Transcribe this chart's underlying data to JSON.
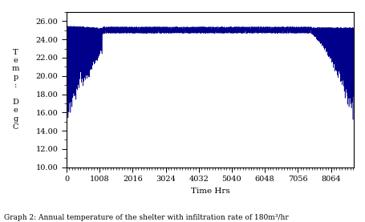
{
  "title": "Graph 2: Annual temperature of the shelter with infiltration rate of 180m³/hr",
  "ylabel": "T\ne\nm\np\n:\n\nD\ne\ng\nC",
  "xlabel": "Time Hrs",
  "xlim": [
    0,
    8760
  ],
  "ylim": [
    10,
    27
  ],
  "yticks": [
    10.0,
    12.0,
    14.0,
    16.0,
    18.0,
    20.0,
    22.0,
    24.0,
    26.0
  ],
  "xticks": [
    0,
    1008,
    2016,
    3024,
    4032,
    5040,
    6048,
    7056,
    8064
  ],
  "line_color": "#00008B",
  "figsize": [
    4.56,
    2.77
  ],
  "dpi": 100,
  "winter1_end": 1100,
  "winter2_start": 7450,
  "set_point": 25.0,
  "winter1_min_start": 17.0,
  "winter1_min_end": 22.0,
  "winter2_min_start": 24.0,
  "winter2_min_end": 16.0
}
